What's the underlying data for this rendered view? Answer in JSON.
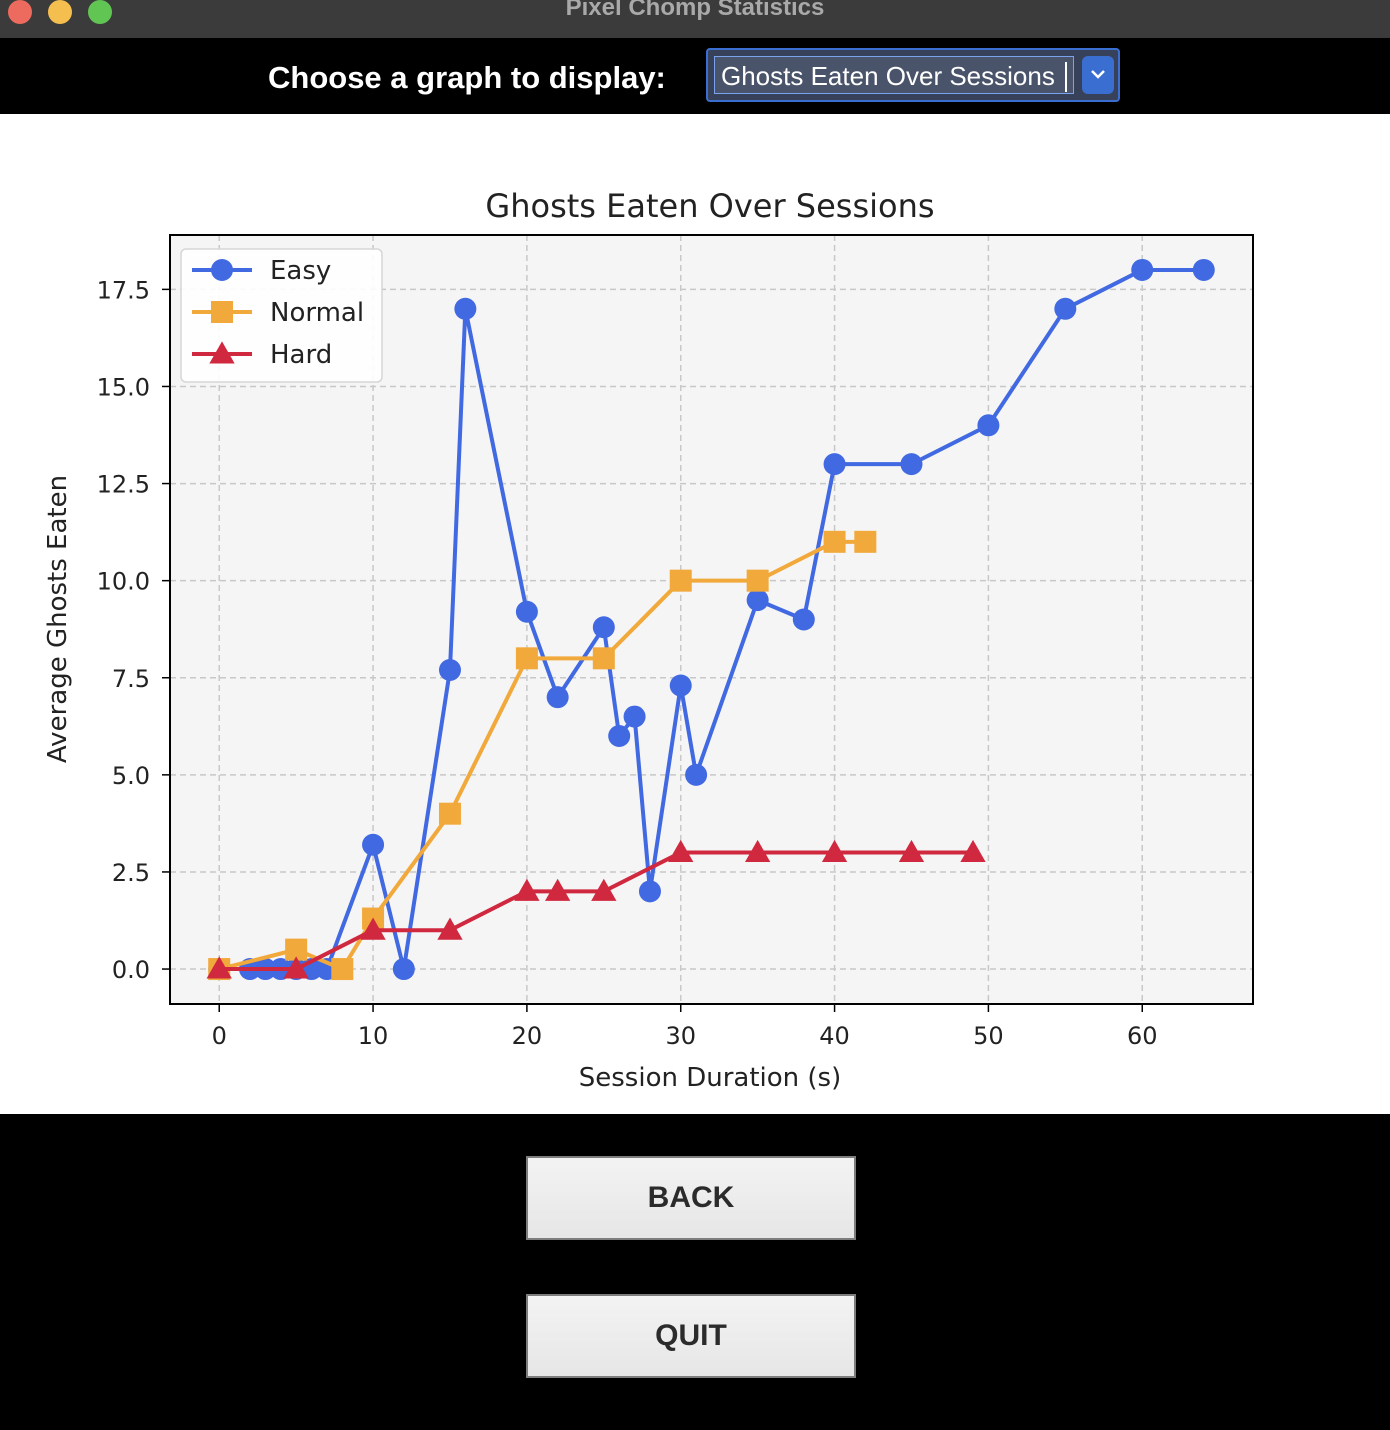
{
  "window": {
    "title": "Pixel Chomp Statistics"
  },
  "toolbar": {
    "choose_label": "Choose a graph to display:",
    "selected_graph": "Ghosts Eaten Over Sessions"
  },
  "buttons": {
    "back": "BACK",
    "quit": "QUIT"
  },
  "chart_data": {
    "type": "line",
    "title": "Ghosts Eaten Over Sessions",
    "xlabel": "Session Duration (s)",
    "ylabel": "Average Ghosts Eaten",
    "xlim": [
      -3.2,
      67.2
    ],
    "ylim": [
      -0.9,
      18.9
    ],
    "xticks": [
      0,
      10,
      20,
      30,
      40,
      50,
      60
    ],
    "yticks": [
      0.0,
      2.5,
      5.0,
      7.5,
      10.0,
      12.5,
      15.0,
      17.5
    ],
    "grid": true,
    "legend_position": "upper-left",
    "series": [
      {
        "name": "Easy",
        "marker": "circle",
        "color": "#4169e1",
        "points": [
          [
            0,
            0
          ],
          [
            2,
            0
          ],
          [
            3,
            0
          ],
          [
            4,
            0
          ],
          [
            5,
            0
          ],
          [
            6,
            0
          ],
          [
            7,
            0
          ],
          [
            10,
            3.2
          ],
          [
            12,
            0
          ],
          [
            15,
            7.7
          ],
          [
            16,
            17
          ],
          [
            20,
            9.2
          ],
          [
            22,
            7
          ],
          [
            25,
            8.8
          ],
          [
            26,
            6
          ],
          [
            27,
            6.5
          ],
          [
            28,
            2
          ],
          [
            30,
            7.3
          ],
          [
            31,
            5
          ],
          [
            35,
            9.5
          ],
          [
            38,
            9
          ],
          [
            40,
            13
          ],
          [
            45,
            13
          ],
          [
            50,
            14
          ],
          [
            55,
            17
          ],
          [
            60,
            18
          ],
          [
            64,
            18
          ]
        ]
      },
      {
        "name": "Normal",
        "marker": "square",
        "color": "#f2a93b",
        "points": [
          [
            0,
            0
          ],
          [
            5,
            0.5
          ],
          [
            8,
            0
          ],
          [
            10,
            1.3
          ],
          [
            15,
            4
          ],
          [
            20,
            8
          ],
          [
            25,
            8
          ],
          [
            30,
            10
          ],
          [
            35,
            10
          ],
          [
            40,
            11
          ],
          [
            42,
            11
          ]
        ]
      },
      {
        "name": "Hard",
        "marker": "triangle",
        "color": "#d0283f",
        "points": [
          [
            0,
            0
          ],
          [
            5,
            0
          ],
          [
            10,
            1
          ],
          [
            15,
            1
          ],
          [
            20,
            2
          ],
          [
            22,
            2
          ],
          [
            25,
            2
          ],
          [
            30,
            3
          ],
          [
            35,
            3
          ],
          [
            40,
            3
          ],
          [
            45,
            3
          ],
          [
            49,
            3
          ]
        ]
      }
    ]
  }
}
